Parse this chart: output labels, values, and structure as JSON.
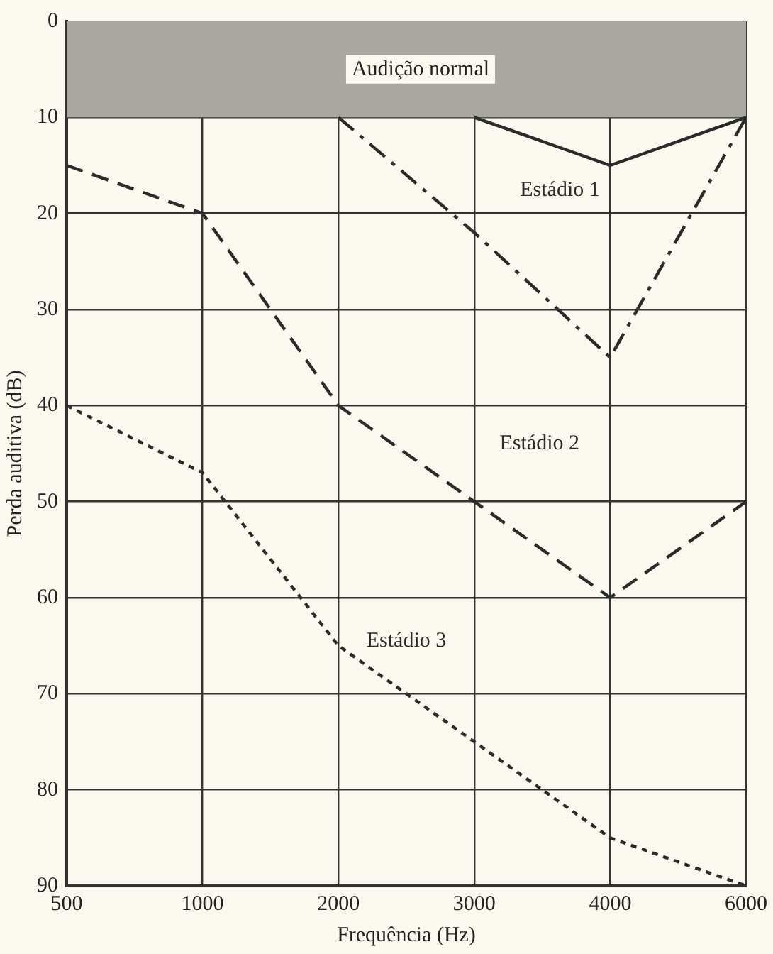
{
  "chart_data": {
    "type": "line",
    "xlabel": "Frequência (Hz)",
    "ylabel": "Perda auditiva (dB)",
    "categories": [
      "500",
      "1000",
      "2000",
      "3000",
      "4000",
      "6000"
    ],
    "series": [
      {
        "name": "Estádio 1",
        "color": "#2b2b2b",
        "line_style": "solid",
        "values": [
          null,
          null,
          null,
          10,
          15,
          10
        ]
      },
      {
        "color": "#2b2b2b",
        "line_style": "dashdot",
        "values": [
          null,
          null,
          10,
          22,
          35,
          10
        ]
      },
      {
        "name": "Estádio 2",
        "color": "#2b2b2b",
        "line_style": "dashed",
        "values": [
          15,
          20,
          40,
          50,
          60,
          50
        ]
      },
      {
        "name": "Estádio 3",
        "color": "#2b2b2b",
        "line_style": "dotted",
        "values": [
          40,
          47,
          65,
          75,
          85,
          90
        ]
      }
    ],
    "ylim": [
      90,
      0
    ],
    "yticks": [
      0,
      10,
      20,
      30,
      40,
      50,
      60,
      70,
      80,
      90
    ],
    "bands": [
      {
        "axis": "y",
        "from": 0,
        "to": 10,
        "label": "Audição normal",
        "color": "#a9a8a0"
      }
    ],
    "grid": true,
    "legend": false,
    "marker": "none"
  }
}
